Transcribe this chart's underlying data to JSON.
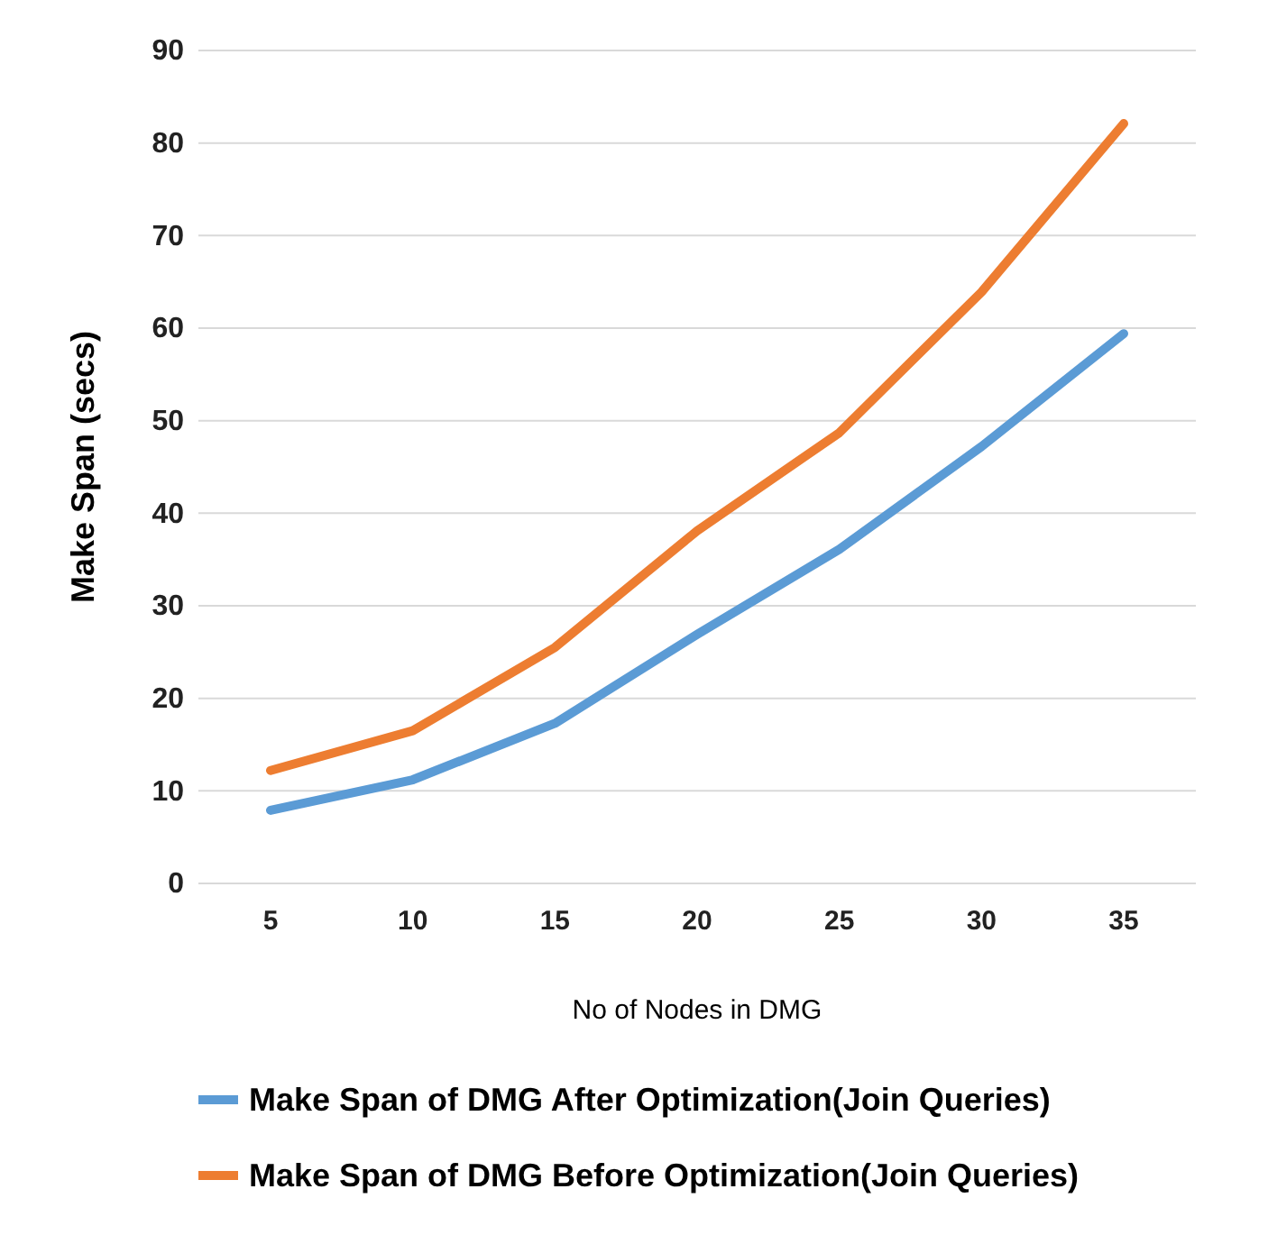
{
  "chart_data": {
    "type": "line",
    "xlabel": "No of Nodes in DMG",
    "ylabel": "Make Span (secs)",
    "categories": [
      "5",
      "10",
      "15",
      "20",
      "25",
      "30",
      "35"
    ],
    "series": [
      {
        "name": "Make Span of DMG After Optimization(Join Queries)",
        "color": "#5b9bd5",
        "values": [
          7.9,
          11.2,
          17.3,
          26.9,
          36.1,
          47.2,
          59.4
        ]
      },
      {
        "name": "Make Span of DMG Before Optimization(Join Queries)",
        "color": "#ed7d31",
        "values": [
          12.2,
          16.5,
          25.5,
          38.1,
          48.7,
          63.9,
          82.1
        ]
      }
    ],
    "ylim": [
      0,
      90
    ],
    "yticks": [
      0,
      10,
      20,
      30,
      40,
      50,
      60,
      70,
      80,
      90
    ],
    "grid": "y",
    "legend": "bottom",
    "marker": "none"
  }
}
